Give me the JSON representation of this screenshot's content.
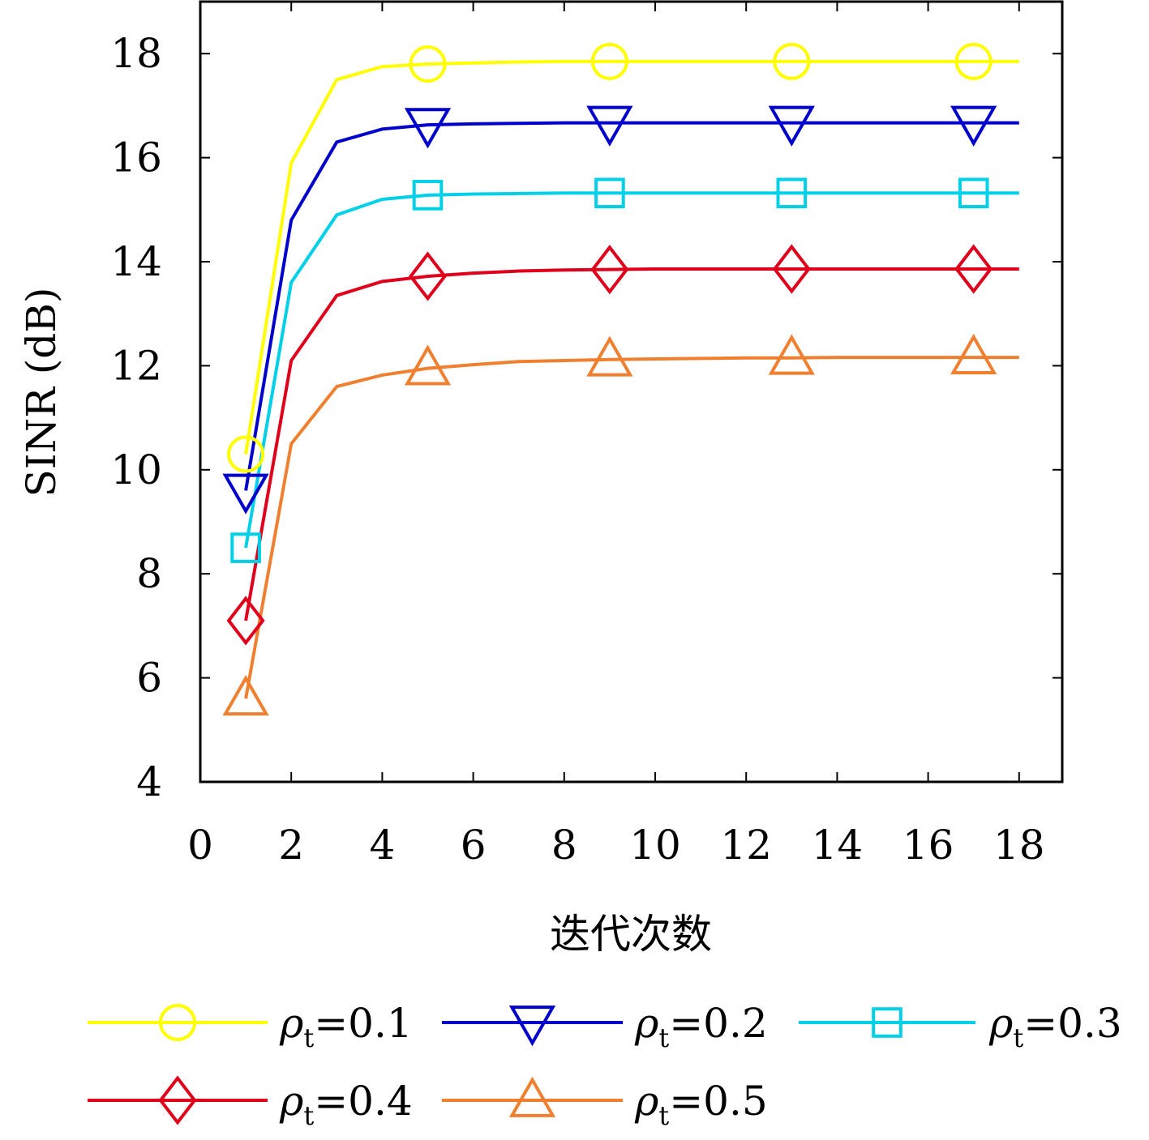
{
  "chart_data": {
    "type": "line",
    "xlabel": "迭代次数",
    "ylabel": "SINR (dB)",
    "xlim": [
      0,
      19
    ],
    "ylim": [
      4,
      19
    ],
    "xticks": [
      0,
      2,
      4,
      6,
      8,
      10,
      12,
      14,
      16,
      18
    ],
    "yticks": [
      4,
      6,
      8,
      10,
      12,
      14,
      16,
      18
    ],
    "xtick_labels": [
      "0",
      "2",
      "4",
      "6",
      "8",
      "10",
      "12",
      "14",
      "16",
      "18"
    ],
    "ytick_labels": [
      "4",
      "6",
      "8",
      "10",
      "12",
      "14",
      "16",
      "18"
    ],
    "grid": false,
    "legend_position": "bottom",
    "x": [
      1,
      2,
      3,
      4,
      5,
      6,
      7,
      8,
      9,
      10,
      11,
      12,
      13,
      14,
      15,
      16,
      17,
      18
    ],
    "marker_x": [
      1,
      5,
      9,
      13,
      17
    ],
    "series": [
      {
        "name": "ρt=0.1",
        "label_main": "ρ",
        "label_sub": "t",
        "label_value": "=0.1",
        "color": "#ffff00",
        "marker": "circle",
        "values": [
          10.3,
          15.9,
          17.5,
          17.75,
          17.8,
          17.82,
          17.84,
          17.85,
          17.85,
          17.85,
          17.85,
          17.85,
          17.85,
          17.85,
          17.85,
          17.85,
          17.85,
          17.85
        ]
      },
      {
        "name": "ρt=0.2",
        "label_main": "ρ",
        "label_sub": "t",
        "label_value": "=0.2",
        "color": "#0000cd",
        "marker": "triangle-down",
        "values": [
          9.6,
          14.8,
          16.3,
          16.55,
          16.63,
          16.65,
          16.66,
          16.67,
          16.67,
          16.67,
          16.67,
          16.67,
          16.67,
          16.67,
          16.67,
          16.67,
          16.67,
          16.67
        ]
      },
      {
        "name": "ρt=0.3",
        "label_main": "ρ",
        "label_sub": "t",
        "label_value": "=0.3",
        "color": "#00d0e8",
        "marker": "square",
        "values": [
          8.5,
          13.6,
          14.9,
          15.2,
          15.28,
          15.3,
          15.31,
          15.32,
          15.32,
          15.32,
          15.32,
          15.32,
          15.32,
          15.32,
          15.32,
          15.32,
          15.32,
          15.32
        ]
      },
      {
        "name": "ρt=0.4",
        "label_main": "ρ",
        "label_sub": "t",
        "label_value": "=0.4",
        "color": "#e0001b",
        "marker": "diamond",
        "values": [
          7.1,
          12.1,
          13.35,
          13.62,
          13.72,
          13.78,
          13.82,
          13.84,
          13.85,
          13.86,
          13.86,
          13.86,
          13.86,
          13.86,
          13.86,
          13.86,
          13.86,
          13.86
        ]
      },
      {
        "name": "ρt=0.5",
        "label_main": "ρ",
        "label_sub": "t",
        "label_value": "=0.5",
        "color": "#f08030",
        "marker": "triangle-up",
        "values": [
          5.6,
          10.5,
          11.6,
          11.82,
          11.95,
          12.02,
          12.08,
          12.1,
          12.12,
          12.13,
          12.14,
          12.15,
          12.15,
          12.16,
          12.16,
          12.16,
          12.16,
          12.16
        ]
      }
    ]
  }
}
